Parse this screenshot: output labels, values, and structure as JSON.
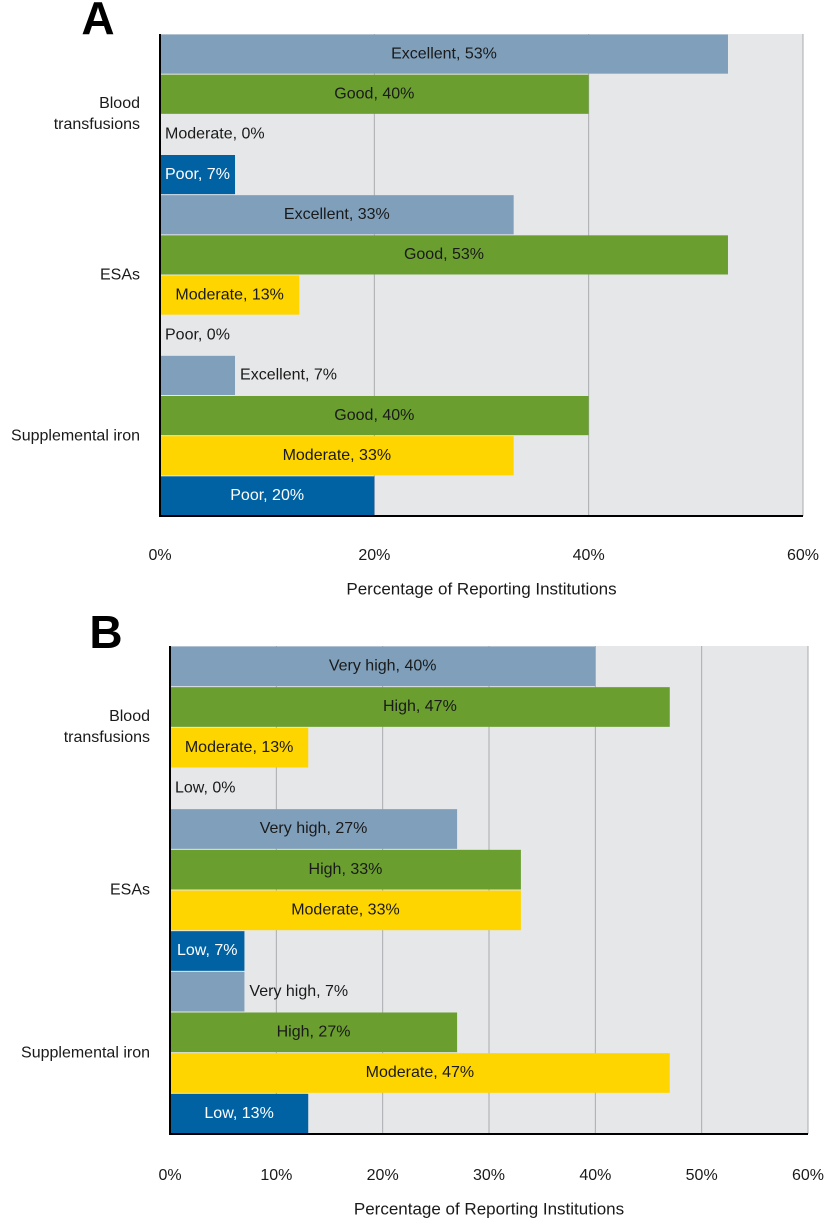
{
  "chart_data": [
    {
      "type": "bar",
      "orientation": "horizontal",
      "panel_label": "A",
      "categories": [
        "Blood transfusions",
        "ESAs",
        "Supplemental iron"
      ],
      "series": [
        {
          "name": "Excellent",
          "color": "#7f9fba",
          "text_color": "#1a1a1a",
          "values": [
            53,
            33,
            7
          ],
          "value_labels": [
            "Excellent, 53%",
            "Excellent, 33%",
            "Excellent, 7%"
          ]
        },
        {
          "name": "Good",
          "color": "#6a9e2f",
          "text_color": "#1a1a1a",
          "values": [
            40,
            53,
            40
          ],
          "value_labels": [
            "Good, 40%",
            "Good, 53%",
            "Good, 40%"
          ]
        },
        {
          "name": "Moderate",
          "color": "#ffd500",
          "text_color": "#1a1a1a",
          "values": [
            0,
            13,
            33
          ],
          "value_labels": [
            "Moderate, 0%",
            "Moderate, 13%",
            "Moderate, 33%"
          ]
        },
        {
          "name": "Poor",
          "color": "#0062a3",
          "text_color": "#ffffff",
          "values": [
            7,
            0,
            20
          ],
          "value_labels": [
            "Poor, 7%",
            "Poor, 0%",
            "Poor, 20%"
          ]
        }
      ],
      "xlim": [
        0,
        60
      ],
      "xticks": [
        {
          "value": 0,
          "label": "0%"
        },
        {
          "value": 20,
          "label": "20%"
        },
        {
          "value": 40,
          "label": "40%"
        },
        {
          "value": 60,
          "label": "60%"
        }
      ],
      "xlabel": "Percentage of Reporting Institutions",
      "grid": true
    },
    {
      "type": "bar",
      "orientation": "horizontal",
      "panel_label": "B",
      "categories": [
        "Blood transfusions",
        "ESAs",
        "Supplemental iron"
      ],
      "series": [
        {
          "name": "Very high",
          "color": "#7f9fba",
          "text_color": "#1a1a1a",
          "values": [
            40,
            27,
            7
          ],
          "value_labels": [
            "Very high, 40%",
            "Very high, 27%",
            "Very high, 7%"
          ]
        },
        {
          "name": "High",
          "color": "#6a9e2f",
          "text_color": "#1a1a1a",
          "values": [
            47,
            33,
            27
          ],
          "value_labels": [
            "High, 47%",
            "High, 33%",
            "High, 27%"
          ]
        },
        {
          "name": "Moderate",
          "color": "#ffd500",
          "text_color": "#1a1a1a",
          "values": [
            13,
            33,
            47
          ],
          "value_labels": [
            "Moderate, 13%",
            "Moderate, 33%",
            "Moderate, 47%"
          ]
        },
        {
          "name": "Low",
          "color": "#0062a3",
          "text_color": "#ffffff",
          "values": [
            0,
            7,
            13
          ],
          "value_labels": [
            "Low, 0%",
            "Low, 7%",
            "Low, 13%"
          ]
        }
      ],
      "xlim": [
        0,
        60
      ],
      "xticks": [
        {
          "value": 0,
          "label": "0%"
        },
        {
          "value": 10,
          "label": "10%"
        },
        {
          "value": 20,
          "label": "20%"
        },
        {
          "value": 30,
          "label": "30%"
        },
        {
          "value": 40,
          "label": "40%"
        },
        {
          "value": 50,
          "label": "50%"
        },
        {
          "value": 60,
          "label": "60%"
        }
      ],
      "xlabel": "Percentage of Reporting Institutions",
      "grid": true
    }
  ]
}
